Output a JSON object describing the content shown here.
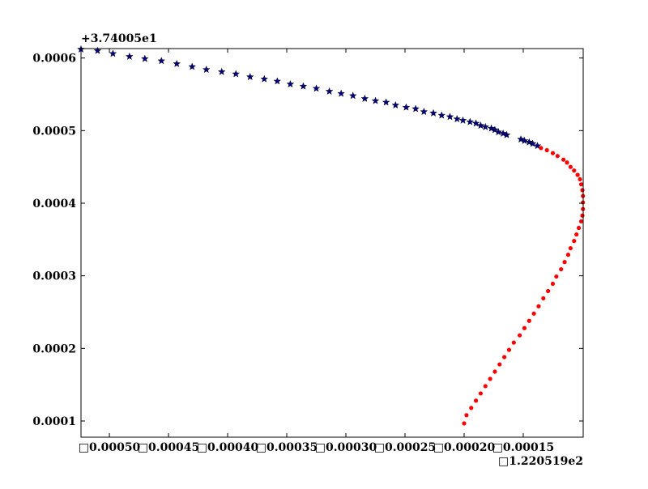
{
  "chart_data": {
    "type": "scatter",
    "x_offset_label": "□1.220519e2",
    "y_offset_label": "+3.74005e1",
    "xlim": [
      -0.000524,
      -9.93e-05
    ],
    "ylim": [
      7.77e-05,
      0.000613
    ],
    "xticks": [
      {
        "value": -0.0005,
        "label": "□0.00050"
      },
      {
        "value": -0.00045,
        "label": "□0.00045"
      },
      {
        "value": -0.0004,
        "label": "□0.00040"
      },
      {
        "value": -0.00035,
        "label": "□0.00035"
      },
      {
        "value": -0.0003,
        "label": "□0.00030"
      },
      {
        "value": -0.00025,
        "label": "□0.00025"
      },
      {
        "value": -0.0002,
        "label": "□0.00020"
      },
      {
        "value": -0.00015,
        "label": "□0.00015"
      }
    ],
    "yticks": [
      0.0001,
      0.0002,
      0.0003,
      0.0004,
      0.0005,
      0.0006
    ],
    "series": [
      {
        "color": "#000080",
        "marker": "star",
        "x": [
          -0.000524,
          -0.00051,
          -0.000497,
          -0.000483,
          -0.00047,
          -0.000456,
          -0.000443,
          -0.00043,
          -0.000418,
          -0.000405,
          -0.000393,
          -0.000381,
          -0.000369,
          -0.000358,
          -0.000347,
          -0.000336,
          -0.000325,
          -0.000314,
          -0.000304,
          -0.000294,
          -0.000284,
          -0.000275,
          -0.000266,
          -0.000258,
          -0.000249,
          -0.000241,
          -0.000234,
          -0.000226,
          -0.000219,
          -0.000212,
          -0.000206,
          -0.000201,
          -0.000195,
          -0.00019,
          -0.000186,
          -0.000182,
          -0.000177,
          -0.000174,
          -0.000171,
          -0.000167,
          -0.000164,
          -0.000152,
          -0.000149,
          -0.000145,
          -0.000142,
          -0.000138
        ],
        "values": [
          0.000612,
          0.00061,
          0.000606,
          0.000602,
          0.000599,
          0.000596,
          0.000592,
          0.000588,
          0.000584,
          0.000581,
          0.000578,
          0.000574,
          0.000571,
          0.000568,
          0.000564,
          0.000561,
          0.000558,
          0.000554,
          0.000551,
          0.000548,
          0.000544,
          0.000541,
          0.000539,
          0.000535,
          0.000532,
          0.00053,
          0.000526,
          0.000524,
          0.000521,
          0.000519,
          0.000516,
          0.000514,
          0.000512,
          0.00051,
          0.000507,
          0.000505,
          0.000503,
          0.000501,
          0.000498,
          0.000496,
          0.000494,
          0.000488,
          0.000486,
          0.000484,
          0.000482,
          0.000479
        ]
      },
      {
        "color": "#ff0000",
        "marker": "circle",
        "x": [
          -0.000135,
          -0.00013,
          -0.000125,
          -0.000121,
          -0.000116,
          -0.000113,
          -0.00011,
          -0.000107,
          -0.000104,
          -0.000102,
          -0.000101,
          -0.0001,
          -9.95e-05,
          -9.95e-05,
          -9.95e-05,
          -0.0001,
          -0.000101,
          -0.000103,
          -0.000105,
          -0.000107,
          -0.00011,
          -0.000112,
          -0.000115,
          -0.000118,
          -0.000122,
          -0.000125,
          -0.000129,
          -0.000133,
          -0.000137,
          -0.000141,
          -0.000145,
          -0.000149,
          -0.000153,
          -0.000158,
          -0.000162,
          -0.000166,
          -0.00017,
          -0.000174,
          -0.000178,
          -0.000182,
          -0.000186,
          -0.00019,
          -0.000194,
          -0.000198,
          -0.0002
        ],
        "values": [
          0.000476,
          0.000473,
          0.000469,
          0.000465,
          0.00046,
          0.000456,
          0.00045,
          0.000445,
          0.000439,
          0.000433,
          0.000426,
          0.000418,
          0.00041,
          0.000401,
          0.000392,
          0.000383,
          0.000375,
          0.000366,
          0.000357,
          0.000348,
          0.000338,
          0.000329,
          0.000319,
          0.000309,
          0.000299,
          0.000289,
          0.000279,
          0.000269,
          0.000258,
          0.000248,
          0.000238,
          0.000228,
          0.000218,
          0.000208,
          0.000198,
          0.000188,
          0.000178,
          0.000168,
          0.000158,
          0.000148,
          0.000138,
          0.000128,
          0.000118,
          0.000108,
          9.67e-05
        ]
      }
    ]
  }
}
